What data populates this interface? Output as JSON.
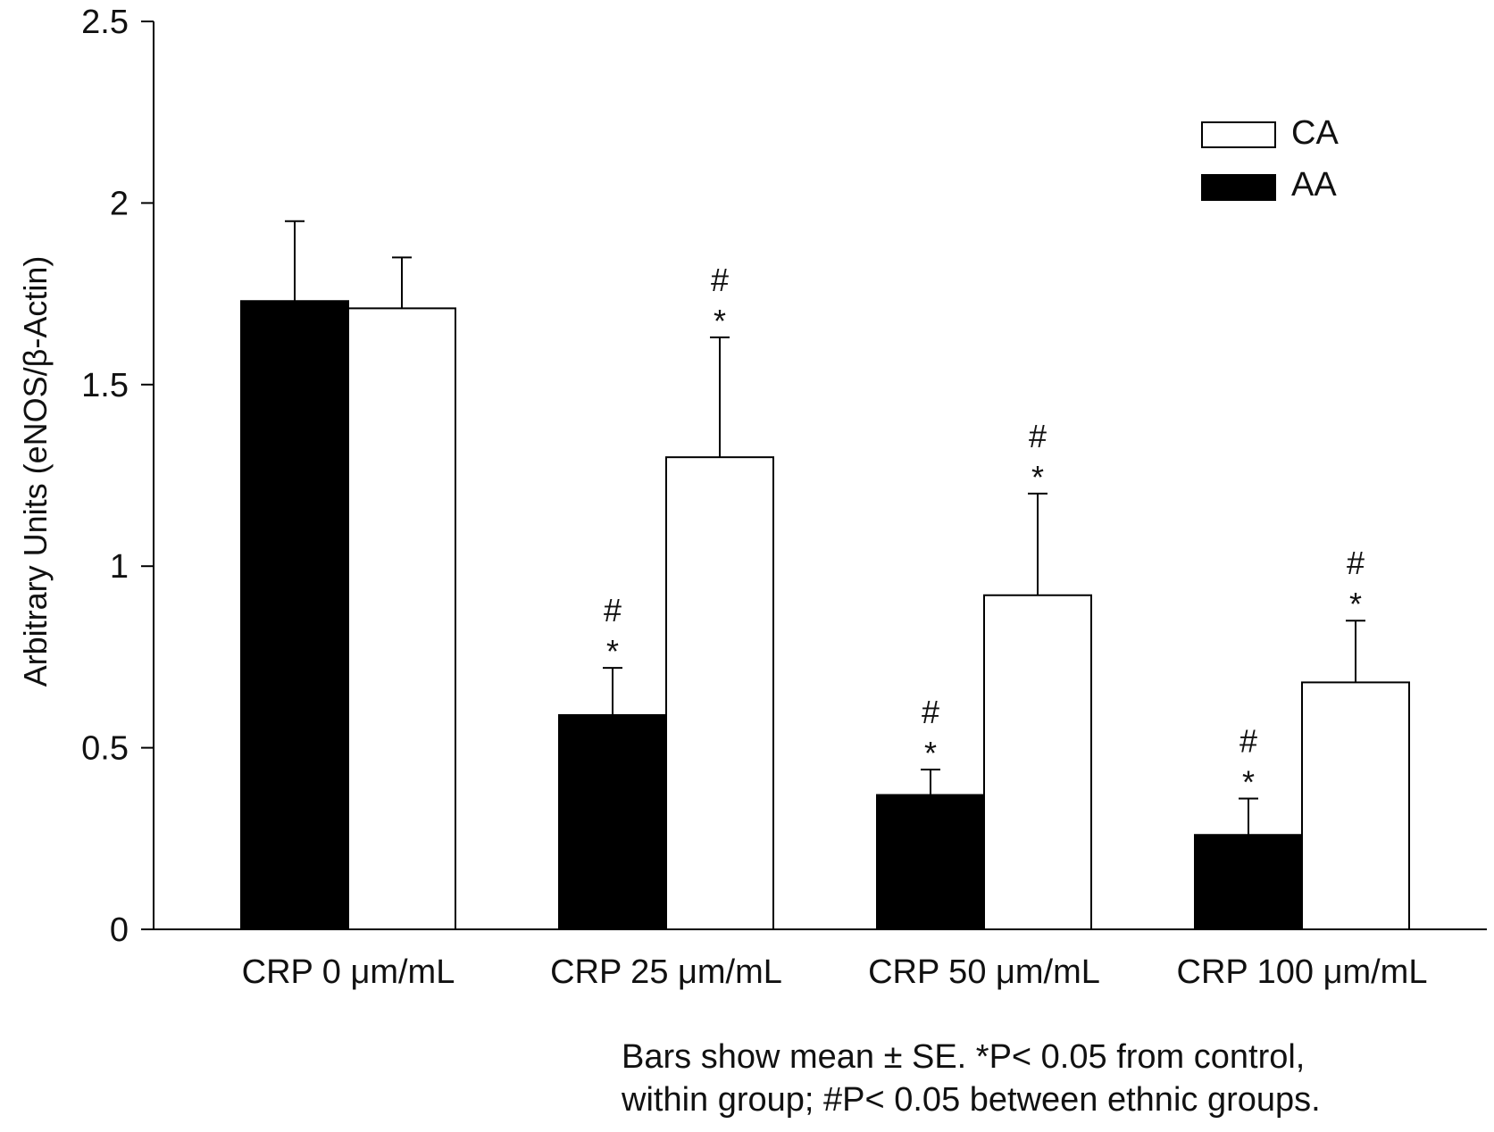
{
  "chart_data": {
    "type": "bar",
    "ylabel": "Arbitrary Units (eNOS/β-Actin)",
    "ylim": [
      0,
      2.5
    ],
    "yticks": [
      "0",
      "0.5",
      "1",
      "1.5",
      "2",
      "2.5"
    ],
    "categories": [
      "CRP 0 μm/mL",
      "CRP 25 μm/mL",
      "CRP 50 μm/mL",
      "CRP 100 μm/mL"
    ],
    "series": [
      {
        "name": "AA",
        "color": "#000000",
        "values": [
          1.73,
          0.59,
          0.37,
          0.26
        ],
        "errors": [
          0.22,
          0.13,
          0.07,
          0.1
        ],
        "marks": [
          [
            "",
            ""
          ],
          [
            "#",
            "*"
          ],
          [
            "#",
            "*"
          ],
          [
            "#",
            "*"
          ]
        ]
      },
      {
        "name": "CA",
        "color": "#ffffff",
        "values": [
          1.71,
          1.3,
          0.92,
          0.68
        ],
        "errors": [
          0.14,
          0.33,
          0.28,
          0.17
        ],
        "marks": [
          [
            "",
            ""
          ],
          [
            "#",
            "*"
          ],
          [
            "#",
            "*"
          ],
          [
            "#",
            "*"
          ]
        ]
      }
    ],
    "legend": {
      "placement": "top-right",
      "order": [
        "CA",
        "AA"
      ]
    },
    "grid": false,
    "footnote": {
      "line1": "Bars show mean ± SE. *P< 0.05 from control,",
      "line2": "within group; #P< 0.05 between ethnic groups."
    }
  }
}
